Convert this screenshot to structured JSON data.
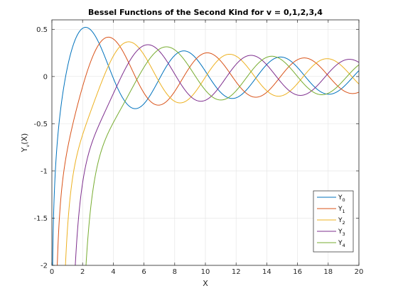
{
  "chart_data": {
    "type": "line",
    "title": "Bessel Functions of the Second Kind for v = 0,1,2,3,4",
    "xlabel": "X",
    "ylabel": {
      "base": "Y",
      "sub": "v",
      "rest": "(X)"
    },
    "xlim": [
      0,
      20
    ],
    "ylim": [
      -2,
      0.6
    ],
    "xticks": [
      0,
      2,
      4,
      6,
      8,
      10,
      12,
      14,
      16,
      18,
      20
    ],
    "yticks": [
      -2,
      -1.5,
      -1,
      -0.5,
      0,
      0.5
    ],
    "xtick_labels": [
      "0",
      "2",
      "4",
      "6",
      "8",
      "10",
      "12",
      "14",
      "16",
      "18",
      "20"
    ],
    "ytick_labels": [
      "-2",
      "-1.5",
      "-1",
      "-0.5",
      "0",
      "0.5"
    ],
    "grid": true,
    "legend_position": "bottom-right",
    "x_sampling": {
      "start": 0.02,
      "end": 20,
      "step": 0.02
    },
    "series": [
      {
        "name": "Y",
        "sub": "0",
        "order": 0,
        "color": "#0072BD"
      },
      {
        "name": "Y",
        "sub": "1",
        "order": 1,
        "color": "#D95319"
      },
      {
        "name": "Y",
        "sub": "2",
        "order": 2,
        "color": "#EDB120"
      },
      {
        "name": "Y",
        "sub": "3",
        "order": 3,
        "color": "#7E2F8E"
      },
      {
        "name": "Y",
        "sub": "4",
        "order": 4,
        "color": "#77AC30"
      }
    ]
  }
}
